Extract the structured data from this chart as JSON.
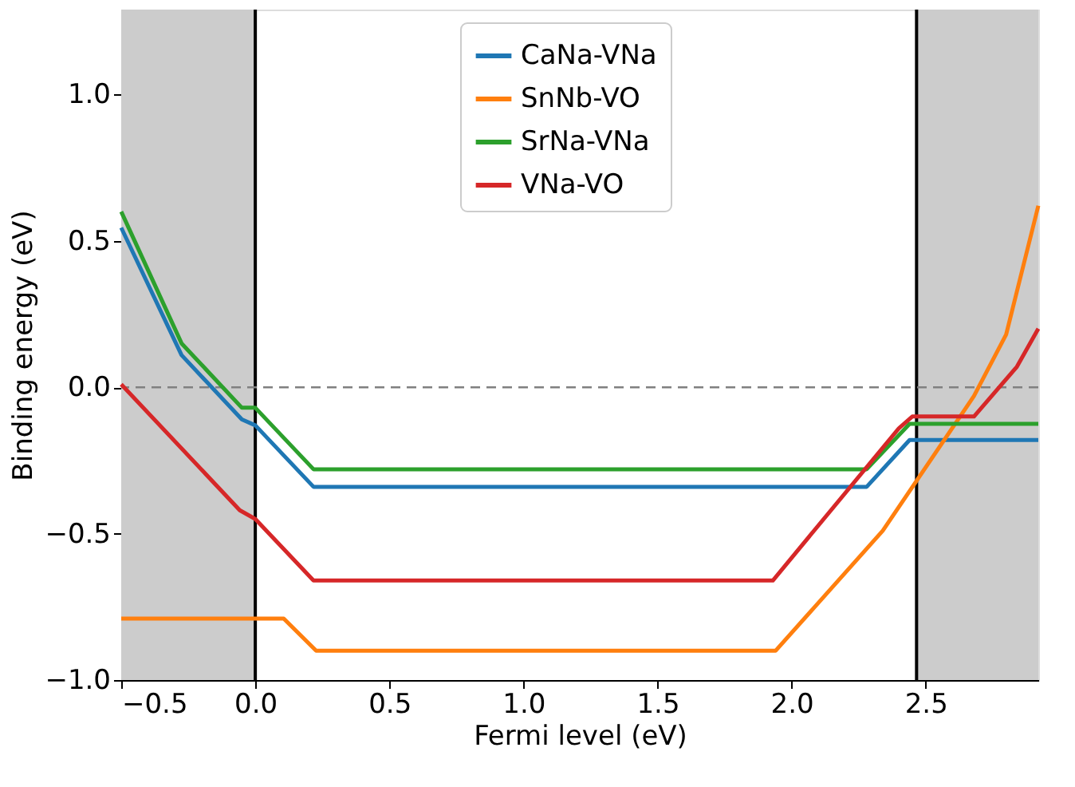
{
  "chart_data": {
    "type": "line",
    "xlabel": "Fermi level (eV)",
    "ylabel": "Binding energy (eV)",
    "xlim": [
      -0.5,
      2.92
    ],
    "ylim": [
      -1.0,
      1.29
    ],
    "xticks": [
      -0.5,
      {
        "value": 0,
        "label": "0.0"
      },
      0.5,
      {
        "value": 1,
        "label": "1.0"
      },
      1.5,
      {
        "value": 2,
        "label": "2.0"
      },
      2.5
    ],
    "yticks": [
      {
        "value": -1,
        "label": "−1.0"
      },
      -0.5,
      {
        "value": 0,
        "label": "0.0"
      },
      0.5,
      {
        "value": 1,
        "label": "1.0"
      }
    ],
    "grid": false,
    "legend": "top",
    "line_style": "solid",
    "marker": "none",
    "series": [
      {
        "name": "CaNa-VNa",
        "color": "#1f77b4",
        "x": [
          -0.5,
          -0.275,
          -0.05,
          0.0,
          0.217,
          2.28,
          2.44,
          2.92
        ],
        "values": [
          0.545,
          0.11,
          -0.11,
          -0.13,
          -0.34,
          -0.34,
          -0.18,
          -0.18
        ]
      },
      {
        "name": "SnNb-VO",
        "color": "#ff7f0e",
        "x": [
          -0.5,
          0.106,
          0.227,
          1.94,
          2.34,
          2.68,
          2.8,
          2.92
        ],
        "values": [
          -0.79,
          -0.79,
          -0.9,
          -0.9,
          -0.49,
          -0.03,
          0.18,
          0.62
        ]
      },
      {
        "name": "SrNa-VNa",
        "color": "#2ca02c",
        "x": [
          -0.5,
          -0.275,
          -0.05,
          0.0,
          0.217,
          2.28,
          2.44,
          2.92
        ],
        "values": [
          0.6,
          0.15,
          -0.07,
          -0.07,
          -0.28,
          -0.28,
          -0.125,
          -0.125
        ]
      },
      {
        "name": "VNa-VO",
        "color": "#d62728",
        "x": [
          -0.5,
          -0.058,
          0.0,
          0.217,
          1.93,
          2.4,
          2.45,
          2.68,
          2.84,
          2.92
        ],
        "values": [
          0.01,
          -0.42,
          -0.45,
          -0.66,
          -0.66,
          -0.14,
          -0.1,
          -0.1,
          0.07,
          0.2
        ]
      }
    ],
    "bands": [
      {
        "axis": "x",
        "from": -0.5,
        "to": 0.0,
        "color": "#cccccc"
      },
      {
        "axis": "x",
        "from": 2.466,
        "to": 2.92,
        "color": "#cccccc"
      }
    ],
    "ref_lines": [
      {
        "axis": "x",
        "value": 0.0,
        "color": "#000000",
        "line_style": "solid"
      },
      {
        "axis": "x",
        "value": 2.466,
        "color": "#000000",
        "line_style": "solid"
      },
      {
        "axis": "y",
        "value": 0.0,
        "color": "#808080",
        "line_style": "dashed"
      }
    ]
  }
}
